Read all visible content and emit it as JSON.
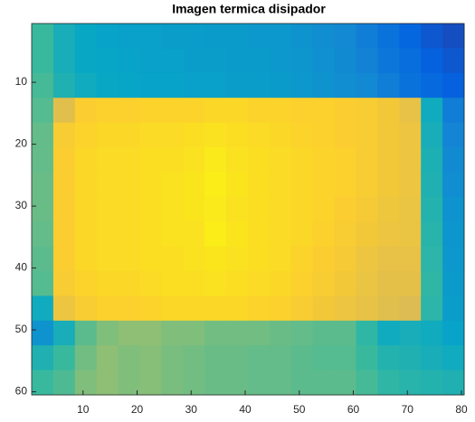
{
  "chart_data": {
    "type": "heatmap",
    "title": "Imagen termica disipador",
    "xlim": [
      0.5,
      80.5
    ],
    "ylim": [
      0.5,
      60.5
    ],
    "y_reversed": true,
    "xticks": [
      10,
      20,
      30,
      40,
      50,
      60,
      70,
      80
    ],
    "yticks": [
      10,
      20,
      30,
      40,
      50,
      60
    ],
    "clim": [
      0,
      1
    ],
    "colormap": [
      "#352a87",
      "#0363e1",
      "#1485d4",
      "#06a7c6",
      "#38b99e",
      "#92bf73",
      "#d9ba56",
      "#fcce2e",
      "#f9fb0e"
    ],
    "z": [
      [
        0.5,
        0.42,
        0.38,
        0.36,
        0.35,
        0.35,
        0.34,
        0.34,
        0.33,
        0.33,
        0.32,
        0.32,
        0.3,
        0.28,
        0.26,
        0.22,
        0.18,
        0.14,
        0.1,
        0.08
      ],
      [
        0.5,
        0.42,
        0.38,
        0.37,
        0.36,
        0.35,
        0.35,
        0.34,
        0.34,
        0.33,
        0.33,
        0.32,
        0.31,
        0.29,
        0.27,
        0.24,
        0.2,
        0.16,
        0.12,
        0.1
      ],
      [
        0.52,
        0.44,
        0.4,
        0.38,
        0.37,
        0.36,
        0.36,
        0.35,
        0.35,
        0.34,
        0.34,
        0.33,
        0.32,
        0.3,
        0.28,
        0.26,
        0.22,
        0.18,
        0.15,
        0.12
      ],
      [
        0.54,
        0.78,
        0.87,
        0.88,
        0.88,
        0.89,
        0.89,
        0.89,
        0.9,
        0.9,
        0.89,
        0.89,
        0.88,
        0.88,
        0.87,
        0.86,
        0.84,
        0.8,
        0.4,
        0.22
      ],
      [
        0.56,
        0.86,
        0.89,
        0.9,
        0.9,
        0.91,
        0.91,
        0.92,
        0.93,
        0.92,
        0.91,
        0.9,
        0.89,
        0.88,
        0.87,
        0.86,
        0.84,
        0.82,
        0.42,
        0.25
      ],
      [
        0.56,
        0.87,
        0.9,
        0.91,
        0.91,
        0.92,
        0.92,
        0.93,
        0.95,
        0.93,
        0.92,
        0.91,
        0.9,
        0.89,
        0.88,
        0.86,
        0.84,
        0.82,
        0.43,
        0.27
      ],
      [
        0.57,
        0.87,
        0.9,
        0.91,
        0.91,
        0.92,
        0.93,
        0.94,
        0.96,
        0.94,
        0.92,
        0.91,
        0.9,
        0.89,
        0.88,
        0.86,
        0.84,
        0.82,
        0.44,
        0.28
      ],
      [
        0.57,
        0.87,
        0.9,
        0.91,
        0.91,
        0.92,
        0.93,
        0.94,
        0.95,
        0.93,
        0.92,
        0.91,
        0.9,
        0.89,
        0.87,
        0.85,
        0.83,
        0.81,
        0.45,
        0.3
      ],
      [
        0.56,
        0.87,
        0.9,
        0.91,
        0.91,
        0.92,
        0.93,
        0.93,
        0.96,
        0.94,
        0.92,
        0.91,
        0.9,
        0.88,
        0.86,
        0.84,
        0.82,
        0.81,
        0.46,
        0.31
      ],
      [
        0.55,
        0.87,
        0.9,
        0.91,
        0.91,
        0.92,
        0.92,
        0.93,
        0.94,
        0.93,
        0.92,
        0.91,
        0.89,
        0.87,
        0.85,
        0.82,
        0.8,
        0.8,
        0.47,
        0.32
      ],
      [
        0.54,
        0.86,
        0.89,
        0.9,
        0.9,
        0.91,
        0.92,
        0.92,
        0.93,
        0.92,
        0.91,
        0.9,
        0.88,
        0.86,
        0.84,
        0.81,
        0.79,
        0.79,
        0.48,
        0.33
      ],
      [
        0.4,
        0.82,
        0.86,
        0.88,
        0.88,
        0.89,
        0.9,
        0.9,
        0.9,
        0.9,
        0.89,
        0.88,
        0.86,
        0.84,
        0.82,
        0.8,
        0.78,
        0.76,
        0.47,
        0.34
      ],
      [
        0.3,
        0.42,
        0.55,
        0.6,
        0.62,
        0.62,
        0.6,
        0.6,
        0.58,
        0.58,
        0.58,
        0.57,
        0.56,
        0.55,
        0.55,
        0.48,
        0.4,
        0.42,
        0.4,
        0.36
      ],
      [
        0.44,
        0.5,
        0.58,
        0.62,
        0.6,
        0.61,
        0.59,
        0.58,
        0.57,
        0.57,
        0.56,
        0.56,
        0.55,
        0.54,
        0.54,
        0.5,
        0.45,
        0.44,
        0.42,
        0.4
      ],
      [
        0.5,
        0.53,
        0.6,
        0.62,
        0.6,
        0.61,
        0.59,
        0.58,
        0.57,
        0.57,
        0.56,
        0.56,
        0.55,
        0.55,
        0.55,
        0.52,
        0.48,
        0.46,
        0.45,
        0.44
      ]
    ]
  }
}
